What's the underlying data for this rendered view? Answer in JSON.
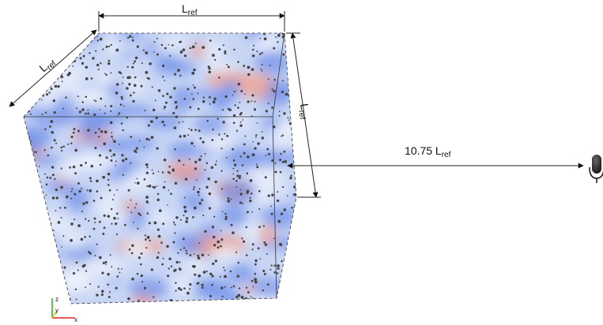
{
  "dimensions": [
    {
      "symbol": "L",
      "subscript": "ref"
    },
    {
      "symbol": "L",
      "subscript": "ref"
    },
    {
      "symbol": "L",
      "subscript": "ref"
    }
  ],
  "distance": {
    "text": "10.75 L",
    "subscript": "ref"
  },
  "axes": {
    "z": "z",
    "y": "y",
    "x": "x"
  }
}
